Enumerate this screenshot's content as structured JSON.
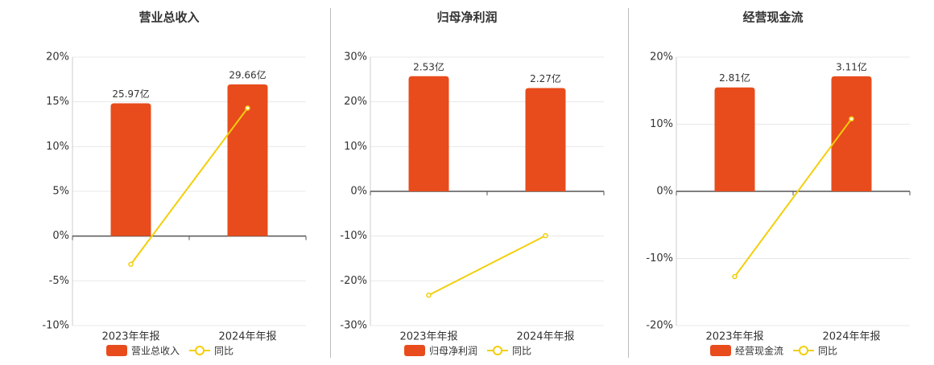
{
  "chart_data": [
    {
      "type": "combo",
      "title": "营业总收入",
      "categories": [
        "2023年年报",
        "2024年年报"
      ],
      "series": [
        {
          "name": "营业总收入",
          "type": "bar",
          "axis": "y2",
          "color": "#e84c1c",
          "values": [
            25.97,
            29.66
          ],
          "value_labels": [
            "25.97亿",
            "29.66亿"
          ]
        },
        {
          "name": "同比",
          "type": "line",
          "color": "#f2cf0a",
          "values": [
            -3.15,
            14.3
          ]
        }
      ],
      "ylim": [
        -10,
        20
      ],
      "yticks": [
        {
          "value": -10,
          "label": "-10%"
        },
        {
          "value": -5,
          "label": "-5%"
        },
        {
          "value": 0,
          "label": "0%"
        },
        {
          "value": 5,
          "label": "5%"
        },
        {
          "value": 10,
          "label": "10%"
        },
        {
          "value": 15,
          "label": "15%"
        },
        {
          "value": 20,
          "label": "20%"
        }
      ],
      "y2lim": [
        -17.5,
        35
      ],
      "grid": true
    },
    {
      "type": "combo",
      "title": "归母净利润",
      "categories": [
        "2023年年报",
        "2024年年报"
      ],
      "series": [
        {
          "name": "归母净利润",
          "type": "bar",
          "axis": "y2",
          "color": "#e84c1c",
          "values": [
            2.53,
            2.27
          ],
          "value_labels": [
            "2.53亿",
            "2.27亿"
          ]
        },
        {
          "name": "同比",
          "type": "line",
          "color": "#f2cf0a",
          "values": [
            -23.2,
            -9.9
          ]
        }
      ],
      "ylim": [
        -30,
        30
      ],
      "yticks": [
        {
          "value": -30,
          "label": "-30%"
        },
        {
          "value": -20,
          "label": "-20%"
        },
        {
          "value": -10,
          "label": "-10%"
        },
        {
          "value": 0,
          "label": "0%"
        },
        {
          "value": 10,
          "label": "10%"
        },
        {
          "value": 20,
          "label": "20%"
        },
        {
          "value": 30,
          "label": "30%"
        }
      ],
      "y2lim": [
        -2.95,
        2.95
      ],
      "grid": true
    },
    {
      "type": "combo",
      "title": "经营现金流",
      "categories": [
        "2023年年报",
        "2024年年报"
      ],
      "series": [
        {
          "name": "经营现金流",
          "type": "bar",
          "axis": "y2",
          "color": "#e84c1c",
          "values": [
            2.81,
            3.11
          ],
          "value_labels": [
            "2.81亿",
            "3.11亿"
          ]
        },
        {
          "name": "同比",
          "type": "line",
          "color": "#f2cf0a",
          "values": [
            -12.7,
            10.8
          ]
        }
      ],
      "ylim": [
        -20,
        20
      ],
      "yticks": [
        {
          "value": -20,
          "label": "-20%"
        },
        {
          "value": -10,
          "label": "-10%"
        },
        {
          "value": 0,
          "label": "0%"
        },
        {
          "value": 10,
          "label": "10%"
        },
        {
          "value": 20,
          "label": "20%"
        }
      ],
      "y2lim": [
        -3.63,
        3.63
      ],
      "grid": true
    }
  ]
}
